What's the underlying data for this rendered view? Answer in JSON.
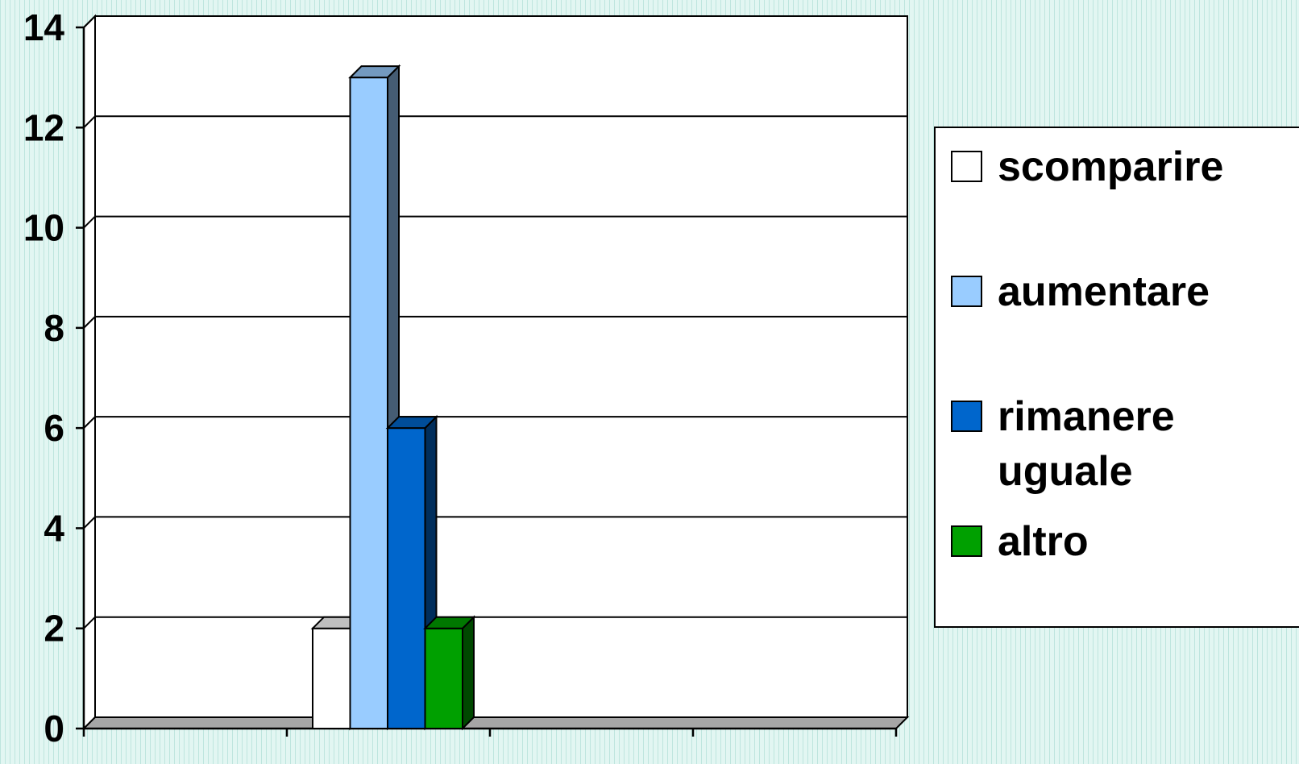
{
  "chart_data": {
    "type": "bar",
    "title": "",
    "xlabel": "",
    "ylabel": "",
    "ylim": [
      0,
      14
    ],
    "yticks": [
      "0",
      "2",
      "4",
      "6",
      "8",
      "10",
      "12",
      "14"
    ],
    "grid": true,
    "legend_position": "right",
    "style": "3d-clustered-column",
    "categories": [
      ""
    ],
    "series": [
      {
        "name": "scomparire",
        "values": [
          2
        ],
        "color": "#ffffff"
      },
      {
        "name": "aumentare",
        "values": [
          13
        ],
        "color": "#99ccff"
      },
      {
        "name": "rimanere uguale",
        "values": [
          6
        ],
        "color": "#0066cc"
      },
      {
        "name": "altro",
        "values": [
          2
        ],
        "color": "#00a000"
      }
    ]
  },
  "legend": {
    "items": [
      {
        "lines": [
          "scomparire"
        ],
        "color": "#ffffff"
      },
      {
        "lines": [
          "aumentare"
        ],
        "color": "#99ccff"
      },
      {
        "lines": [
          "rimanere",
          "uguale"
        ],
        "color": "#0066cc"
      },
      {
        "lines": [
          "altro"
        ],
        "color": "#00a000"
      }
    ]
  }
}
